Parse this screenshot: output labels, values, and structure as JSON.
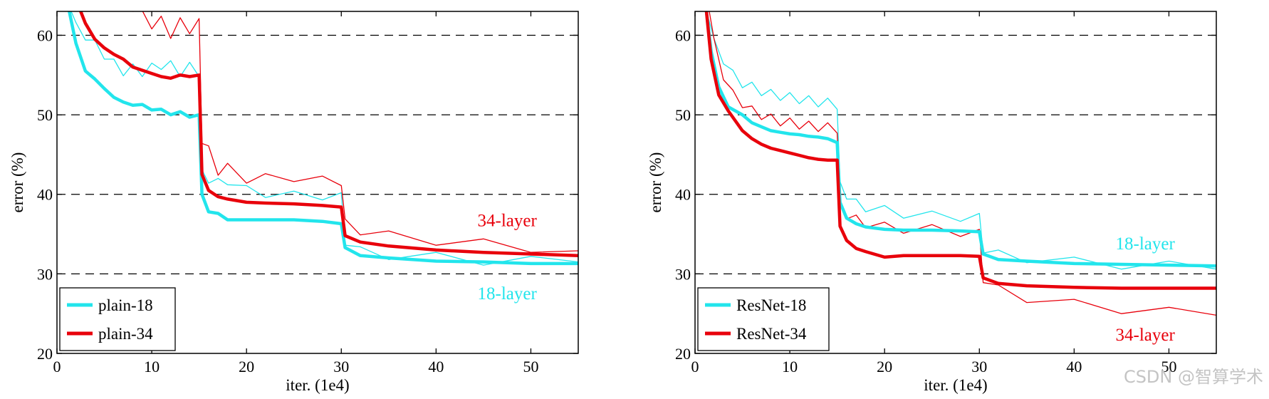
{
  "watermark": "CSDN @智算学术",
  "colors": {
    "cyan": "#22E5EC",
    "red": "#E8000B",
    "axis": "#000000",
    "grid": "#000000"
  },
  "chart_data": [
    {
      "type": "line",
      "title": "",
      "xlabel": "iter. (1e4)",
      "ylabel": "error (%)",
      "xlim": [
        0,
        55
      ],
      "ylim": [
        20,
        63
      ],
      "xticks": [
        "0",
        "10",
        "20",
        "30",
        "40",
        "50"
      ],
      "yticks": [
        "20",
        "30",
        "40",
        "50",
        "60"
      ],
      "grid": "dashed horizontal at 30, 40, 50, 60",
      "legend_placement": "bottom-left",
      "legend": [
        "plain-18",
        "plain-34"
      ],
      "annotations": [
        {
          "text": "34-layer",
          "color": "red",
          "x": 47.5,
          "y": 36.8
        },
        {
          "text": "18-layer",
          "color": "cyan",
          "x": 47.5,
          "y": 27.6
        }
      ],
      "series": [
        {
          "name": "plain-18",
          "style": "validation",
          "color": "cyan",
          "x": [
            1.3,
            2,
            3,
            4,
            5,
            6,
            7,
            8,
            9,
            10,
            11,
            12,
            13,
            14,
            15,
            15.3,
            16,
            17,
            18,
            20,
            22,
            25,
            28,
            30,
            30.4,
            32,
            35,
            40,
            45,
            50,
            55
          ],
          "y": [
            63,
            59,
            55.5,
            54.5,
            53.3,
            52.2,
            51.6,
            51.2,
            51.3,
            50.6,
            50.7,
            50,
            50.4,
            49.7,
            50,
            40,
            37.8,
            37.6,
            36.8,
            36.8,
            36.8,
            36.8,
            36.6,
            36.3,
            33.3,
            32.3,
            32.0,
            31.6,
            31.5,
            31.3,
            31.3
          ]
        },
        {
          "name": "plain-34",
          "style": "validation",
          "color": "red",
          "x": [
            2.5,
            3,
            4,
            5,
            6,
            7,
            8,
            9,
            10,
            11,
            12,
            13,
            14,
            15,
            15.3,
            16,
            17,
            18,
            20,
            22,
            25,
            28,
            30,
            30.4,
            32,
            35,
            40,
            45,
            50,
            55
          ],
          "y": [
            63,
            61.5,
            59.5,
            58.4,
            57.6,
            57,
            56,
            55.6,
            55.2,
            54.8,
            54.6,
            55,
            54.8,
            55,
            42.5,
            40.5,
            39.7,
            39.4,
            39.0,
            38.9,
            38.8,
            38.6,
            38.4,
            34.8,
            34.0,
            33.5,
            33.0,
            32.7,
            32.5,
            32.3
          ]
        },
        {
          "name": "plain-18 train",
          "style": "training",
          "color": "cyan",
          "x": [
            1.5,
            2,
            3,
            4,
            5,
            6,
            7,
            8,
            9,
            10,
            11,
            12,
            13,
            14,
            15,
            15.3,
            16,
            17,
            18,
            20,
            22,
            25,
            28,
            30,
            30.4,
            32,
            35,
            40,
            45,
            50,
            55
          ],
          "y": [
            63,
            61,
            60,
            58.8,
            57.6,
            56.4,
            55.5,
            55.8,
            55.4,
            55.9,
            56.3,
            56.2,
            55.4,
            56,
            55.4,
            42.5,
            42,
            41.4,
            41.8,
            40.5,
            40.2,
            39.8,
            39.9,
            39.6,
            34.2,
            32.8,
            32.4,
            32.1,
            31.7,
            31.6,
            31.5
          ]
        },
        {
          "name": "plain-34 train",
          "style": "training",
          "color": "red",
          "x": [
            8,
            9,
            10,
            11,
            12,
            13,
            14,
            15,
            15.3,
            16,
            17,
            18,
            20,
            22,
            25,
            28,
            30,
            30.4,
            32,
            35,
            40,
            45,
            50,
            55
          ],
          "y": [
            63,
            62.5,
            61.4,
            61.8,
            60.2,
            61.6,
            60.8,
            61.5,
            47,
            45.5,
            43,
            43.3,
            42,
            42,
            42.2,
            41.7,
            41.7,
            36.3,
            35.5,
            34.8,
            34.2,
            33.8,
            33.3,
            32.9
          ]
        }
      ]
    },
    {
      "type": "line",
      "title": "",
      "xlabel": "iter. (1e4)",
      "ylabel": "error (%)",
      "xlim": [
        0,
        55
      ],
      "ylim": [
        20,
        63
      ],
      "xticks": [
        "0",
        "10",
        "20",
        "30",
        "40",
        "50"
      ],
      "yticks": [
        "20",
        "30",
        "40",
        "50",
        "60"
      ],
      "grid": "dashed horizontal at 30, 40, 50, 60",
      "legend_placement": "bottom-left",
      "legend": [
        "ResNet-18",
        "ResNet-34"
      ],
      "annotations": [
        {
          "text": "18-layer",
          "color": "cyan",
          "x": 47.5,
          "y": 33.9
        },
        {
          "text": "34-layer",
          "color": "red",
          "x": 47.5,
          "y": 22.4
        }
      ],
      "series": [
        {
          "name": "ResNet-18",
          "style": "validation",
          "color": "cyan",
          "x": [
            1.2,
            1.7,
            2.5,
            3.5,
            5,
            6,
            7,
            8,
            9,
            10,
            11,
            12,
            13,
            14,
            15,
            15.3,
            16,
            17,
            18,
            20,
            22,
            25,
            28,
            30,
            30.4,
            32,
            35,
            40,
            45,
            50,
            55
          ],
          "y": [
            63,
            58,
            53.5,
            51,
            50,
            49,
            48.5,
            48,
            47.8,
            47.6,
            47.5,
            47.3,
            47.2,
            47,
            46.5,
            39,
            37,
            36.3,
            35.9,
            35.6,
            35.5,
            35.5,
            35.4,
            35.3,
            32.5,
            31.8,
            31.6,
            31.3,
            31.2,
            31.1,
            31.0
          ]
        },
        {
          "name": "ResNet-34",
          "style": "validation",
          "color": "red",
          "x": [
            1.2,
            1.7,
            2.5,
            3.5,
            5,
            6,
            7,
            8,
            9,
            10,
            11,
            12,
            13,
            14,
            15,
            15.3,
            16,
            17,
            18,
            20,
            22,
            25,
            28,
            30,
            30.4,
            32,
            35,
            40,
            45,
            50,
            55
          ],
          "y": [
            63,
            57,
            52.5,
            50.5,
            48,
            47,
            46.3,
            45.8,
            45.5,
            45.2,
            44.9,
            44.6,
            44.4,
            44.3,
            44.3,
            36,
            34.2,
            33.2,
            32.8,
            32.1,
            32.3,
            32.3,
            32.3,
            32.2,
            29.5,
            28.8,
            28.5,
            28.3,
            28.2,
            28.2,
            28.2
          ]
        },
        {
          "name": "ResNet-18 train",
          "style": "training",
          "color": "cyan",
          "x": [
            1.2,
            2,
            3,
            4,
            5,
            6,
            7,
            8,
            9,
            10,
            11,
            12,
            13,
            14,
            15,
            15.3,
            16,
            17,
            18,
            20,
            22,
            25,
            28,
            30,
            30.4,
            32,
            35,
            40,
            45,
            50,
            55
          ],
          "y": [
            63,
            59,
            57,
            55,
            54,
            53.5,
            53,
            52.6,
            52.4,
            52.2,
            52,
            51.8,
            51.6,
            51.5,
            51.3,
            41,
            40,
            38.8,
            38.4,
            38,
            37.6,
            37.3,
            37.2,
            37,
            33.2,
            32.4,
            32.0,
            31.5,
            31.2,
            31.0,
            30.6
          ]
        },
        {
          "name": "ResNet-34 train",
          "style": "training",
          "color": "red",
          "x": [
            1.5,
            2,
            3,
            4,
            5,
            6,
            7,
            8,
            9,
            10,
            11,
            12,
            13,
            14,
            15,
            15.3,
            16,
            17,
            18,
            20,
            22,
            25,
            28,
            30,
            30.4,
            32,
            35,
            40,
            45,
            50,
            55
          ],
          "y": [
            63,
            59,
            55,
            52.5,
            51.5,
            50.5,
            50,
            49.5,
            49.2,
            49,
            48.8,
            48.6,
            48.5,
            48.4,
            48.3,
            38.5,
            37.5,
            36.8,
            36.4,
            35.9,
            35.7,
            35.6,
            35.3,
            35,
            29.5,
            28.0,
            27.0,
            26.2,
            25.6,
            25.2,
            24.8
          ]
        }
      ]
    }
  ]
}
